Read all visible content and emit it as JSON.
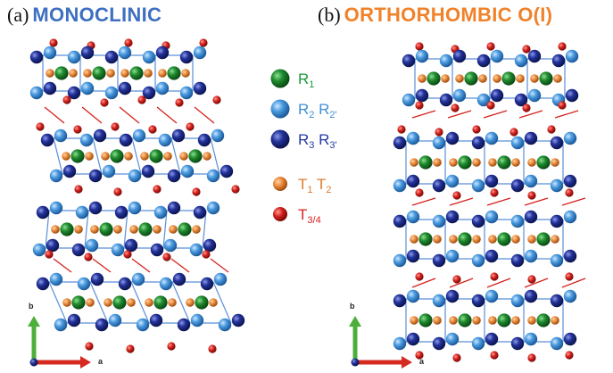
{
  "panels": [
    {
      "tag": "(a)",
      "name": "MONOCLINIC",
      "name_color": "#3e6fc1"
    },
    {
      "tag": "(b)",
      "name": "ORTHORHOMBIC O(I)",
      "name_color": "#f0822a"
    }
  ],
  "legend": [
    {
      "label": "R",
      "sub": "1",
      "label2": "",
      "sub2": "",
      "text_color": "#1a9a3a",
      "atom": "green-sphere"
    },
    {
      "label": "R",
      "sub": "2",
      "label2": "R",
      "sub2": "2'",
      "text_color": "#3f8fd6",
      "atom": "lightblue-sphere"
    },
    {
      "label": "R",
      "sub": "3",
      "label2": "R",
      "sub2": "3'",
      "text_color": "#233aa3",
      "atom": "darkblue-sphere"
    },
    {
      "label": "T",
      "sub": "1",
      "label2": "T",
      "sub2": "2",
      "text_color": "#e07a2a",
      "atom": "orange-sphere"
    },
    {
      "label": "T",
      "sub": "3/4",
      "label2": "",
      "sub2": "",
      "text_color": "#d9231f",
      "atom": "red-sphere"
    }
  ],
  "axes": [
    {
      "up": "b",
      "right": "a"
    },
    {
      "up": "b",
      "right": "a"
    }
  ],
  "colors": {
    "green": "#1f8b2e",
    "lightblue": "#4a9be0",
    "darkblue": "#22329a",
    "orange": "#e98a3a",
    "red": "#d4211c",
    "bond_blue": "#5b8fd8",
    "bond_red": "#d4211c"
  }
}
